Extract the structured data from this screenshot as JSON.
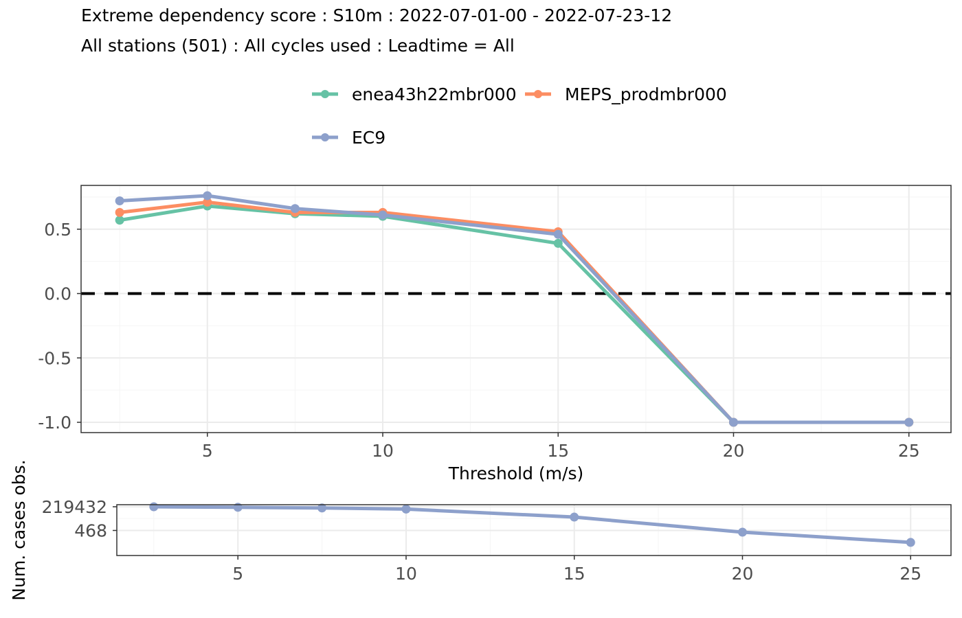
{
  "title": "Extreme dependency score : S10m : 2022-07-01-00 - 2022-07-23-12",
  "subtitle": "All stations (501) : All cycles used : Leadtime = All",
  "colors": {
    "enea43h22mbr000": "#66c2a5",
    "MEPS_prodmbr000": "#fc8d62",
    "EC9": "#8da0cb",
    "grid_major": "#ebebeb",
    "grid_minor": "#f5f5f5",
    "zero_line": "#000000",
    "panel_border": "#333333",
    "tick_text": "#4d4d4d"
  },
  "chart_data": [
    {
      "type": "line",
      "legend_position": "top",
      "xlabel": "Threshold (m/s)",
      "ylabel": "",
      "xlim": [
        1.4,
        26.2
      ],
      "ylim": [
        -1.08,
        0.84
      ],
      "xticks": [
        5,
        10,
        15,
        20,
        25
      ],
      "yticks": [
        -1.0,
        -0.5,
        0.0,
        0.5
      ],
      "ytick_labels": [
        "-1.0",
        "-0.5",
        "0.0",
        "0.5"
      ],
      "grid": true,
      "reference_line": {
        "y": 0,
        "style": "dashed"
      },
      "x": [
        2.5,
        5,
        7.5,
        10,
        15,
        20,
        25
      ],
      "series": [
        {
          "name": "enea43h22mbr000",
          "values": [
            0.57,
            0.68,
            0.62,
            0.6,
            0.39,
            -1.0,
            -1.0
          ]
        },
        {
          "name": "MEPS_prodmbr000",
          "values": [
            0.63,
            0.71,
            0.63,
            0.63,
            0.48,
            -1.0,
            -1.0
          ]
        },
        {
          "name": "EC9",
          "values": [
            0.72,
            0.76,
            0.66,
            0.61,
            0.46,
            -1.0,
            -1.0
          ]
        }
      ]
    },
    {
      "type": "line",
      "xlabel": "",
      "ylabel": "Num. cases obs.",
      "xlim": [
        1.4,
        26.2
      ],
      "yticks": [
        468,
        219432
      ],
      "ytick_labels": [
        "468",
        "219432"
      ],
      "xticks": [
        5,
        10,
        15,
        20,
        25
      ],
      "grid": true,
      "x": [
        2.5,
        5,
        7.5,
        10,
        15,
        20,
        25
      ],
      "series": [
        {
          "values": [
            219432,
            190000,
            160000,
            120000,
            15000,
            300,
            20
          ]
        }
      ]
    }
  ],
  "legend": {
    "items": [
      "enea43h22mbr000",
      "MEPS_prodmbr000",
      "EC9"
    ]
  }
}
